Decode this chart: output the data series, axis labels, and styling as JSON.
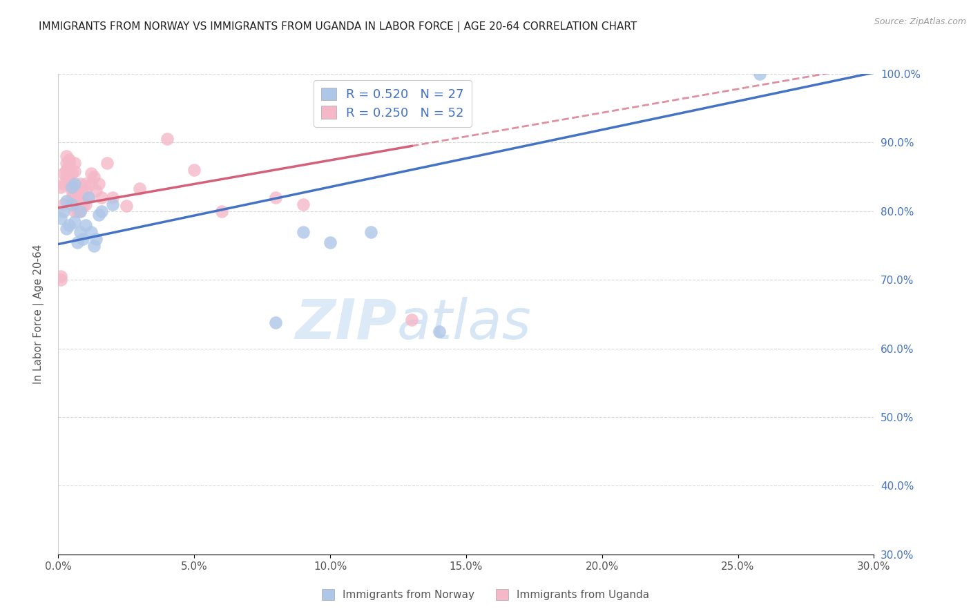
{
  "title": "IMMIGRANTS FROM NORWAY VS IMMIGRANTS FROM UGANDA IN LABOR FORCE | AGE 20-64 CORRELATION CHART",
  "source": "Source: ZipAtlas.com",
  "ylabel": "In Labor Force | Age 20-64",
  "xlim": [
    0.0,
    0.3
  ],
  "ylim": [
    0.3,
    1.0
  ],
  "norway_color": "#aec6e8",
  "uganda_color": "#f4b8c8",
  "norway_line_color": "#4472c4",
  "uganda_line_color": "#d4607a",
  "norway_R": 0.52,
  "norway_N": 27,
  "uganda_R": 0.25,
  "uganda_N": 52,
  "watermark_zip": "ZIP",
  "watermark_atlas": "atlas",
  "background_color": "#ffffff",
  "title_fontsize": 11,
  "right_tick_color": "#4472c4",
  "norway_x": [
    0.001,
    0.002,
    0.003,
    0.003,
    0.004,
    0.005,
    0.005,
    0.006,
    0.006,
    0.007,
    0.008,
    0.008,
    0.009,
    0.01,
    0.011,
    0.012,
    0.013,
    0.014,
    0.015,
    0.016,
    0.02,
    0.08,
    0.09,
    0.1,
    0.115,
    0.14,
    0.258
  ],
  "norway_y": [
    0.79,
    0.8,
    0.775,
    0.815,
    0.78,
    0.835,
    0.81,
    0.84,
    0.785,
    0.755,
    0.77,
    0.8,
    0.76,
    0.78,
    0.82,
    0.77,
    0.75,
    0.76,
    0.795,
    0.8,
    0.81,
    0.638,
    0.77,
    0.755,
    0.77,
    0.625,
    1.0
  ],
  "uganda_x": [
    0.001,
    0.001,
    0.001,
    0.002,
    0.002,
    0.002,
    0.003,
    0.003,
    0.003,
    0.003,
    0.004,
    0.004,
    0.004,
    0.004,
    0.005,
    0.005,
    0.005,
    0.005,
    0.006,
    0.006,
    0.006,
    0.006,
    0.006,
    0.007,
    0.007,
    0.007,
    0.007,
    0.008,
    0.008,
    0.008,
    0.009,
    0.009,
    0.01,
    0.01,
    0.01,
    0.011,
    0.012,
    0.012,
    0.013,
    0.014,
    0.015,
    0.016,
    0.018,
    0.02,
    0.025,
    0.03,
    0.04,
    0.05,
    0.06,
    0.08,
    0.09,
    0.13
  ],
  "uganda_y": [
    0.7,
    0.705,
    0.835,
    0.81,
    0.84,
    0.855,
    0.85,
    0.87,
    0.88,
    0.86,
    0.875,
    0.855,
    0.84,
    0.87,
    0.84,
    0.82,
    0.83,
    0.855,
    0.8,
    0.838,
    0.858,
    0.87,
    0.825,
    0.8,
    0.825,
    0.815,
    0.83,
    0.8,
    0.84,
    0.82,
    0.808,
    0.825,
    0.81,
    0.83,
    0.84,
    0.82,
    0.84,
    0.855,
    0.85,
    0.83,
    0.84,
    0.82,
    0.87,
    0.82,
    0.808,
    0.833,
    0.905,
    0.86,
    0.8,
    0.82,
    0.81,
    0.642
  ]
}
